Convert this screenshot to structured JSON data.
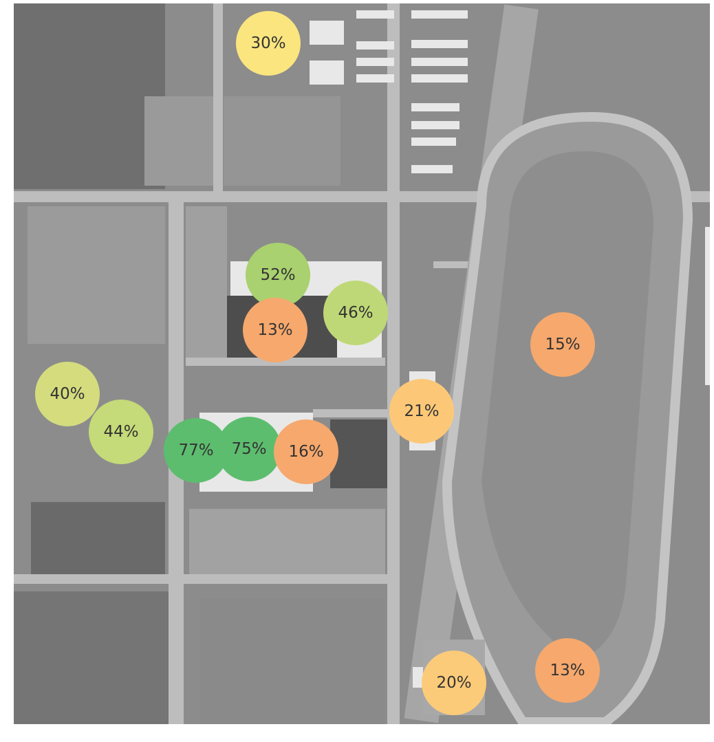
{
  "markers": [
    {
      "label": "30%",
      "color": "#fbe57f"
    },
    {
      "label": "52%",
      "color": "#a9d16f"
    },
    {
      "label": "13%",
      "color": "#f6a86d"
    },
    {
      "label": "46%",
      "color": "#bfd877"
    },
    {
      "label": "15%",
      "color": "#f6a86d"
    },
    {
      "label": "40%",
      "color": "#d4dc7e"
    },
    {
      "label": "44%",
      "color": "#c5da78"
    },
    {
      "label": "77%",
      "color": "#5dbd6e"
    },
    {
      "label": "75%",
      "color": "#5dbd6e"
    },
    {
      "label": "16%",
      "color": "#f6a86d"
    },
    {
      "label": "21%",
      "color": "#fcc878"
    },
    {
      "label": "20%",
      "color": "#fccb79"
    },
    {
      "label": "13%",
      "color": "#f6a86d"
    }
  ]
}
